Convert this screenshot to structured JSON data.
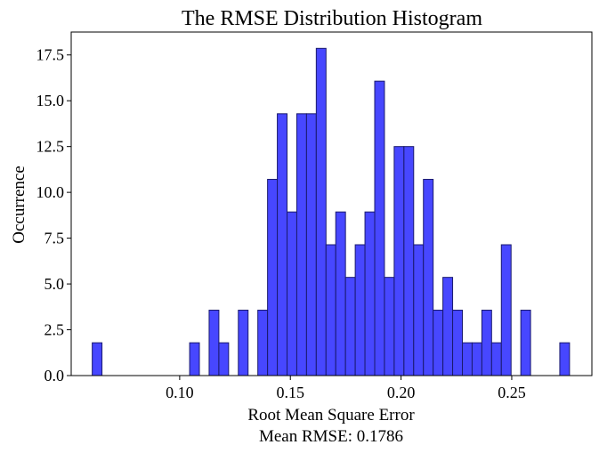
{
  "chart_data": {
    "type": "bar",
    "title": "The RMSE Distribution Histogram",
    "xlabel": "Root Mean Square Error",
    "xlabel_sub": "Mean RMSE: 0.1786",
    "ylabel": "Occurrence",
    "xlim": [
      0.051,
      0.2862
    ],
    "ylim": [
      0,
      18.75
    ],
    "x_ticks": [
      0.1,
      0.15,
      0.2,
      0.25
    ],
    "x_tick_labels": [
      "0.10",
      "0.15",
      "0.20",
      "0.25"
    ],
    "y_ticks": [
      0.0,
      2.5,
      5.0,
      7.5,
      10.0,
      12.5,
      15.0,
      17.5
    ],
    "y_tick_labels": [
      "0.0",
      "2.5",
      "5.0",
      "7.5",
      "10.0",
      "12.5",
      "15.0",
      "17.5"
    ],
    "grid": false,
    "bar_color": "#4040ff",
    "edge_color": "#1a1a6e",
    "bin_edges": [
      0.0605,
      0.0649,
      0.0693,
      0.0737,
      0.0781,
      0.0825,
      0.0869,
      0.0913,
      0.0957,
      0.1001,
      0.1045,
      0.1089,
      0.1133,
      0.1177,
      0.1221,
      0.1265,
      0.1309,
      0.1353,
      0.1397,
      0.1441,
      0.1485,
      0.1529,
      0.1573,
      0.1617,
      0.1661,
      0.1705,
      0.1749,
      0.1793,
      0.1837,
      0.1881,
      0.1925,
      0.1969,
      0.2013,
      0.2057,
      0.2101,
      0.2145,
      0.2189,
      0.2233,
      0.2277,
      0.2321,
      0.2365,
      0.2409,
      0.2453,
      0.2497,
      0.2541,
      0.2585,
      0.2629,
      0.2673,
      0.2717,
      0.2761
    ],
    "values": [
      1.79,
      0,
      0,
      0,
      0,
      0,
      0,
      0,
      0,
      0,
      1.79,
      0,
      3.57,
      1.79,
      0,
      3.57,
      0,
      3.57,
      10.71,
      14.29,
      8.93,
      14.29,
      14.29,
      17.86,
      7.14,
      8.93,
      5.36,
      7.14,
      8.93,
      16.07,
      5.36,
      12.5,
      12.5,
      7.14,
      10.71,
      3.57,
      5.36,
      3.57,
      1.79,
      1.79,
      3.57,
      1.79,
      7.14,
      0,
      3.57,
      0,
      0,
      0,
      1.79
    ]
  }
}
